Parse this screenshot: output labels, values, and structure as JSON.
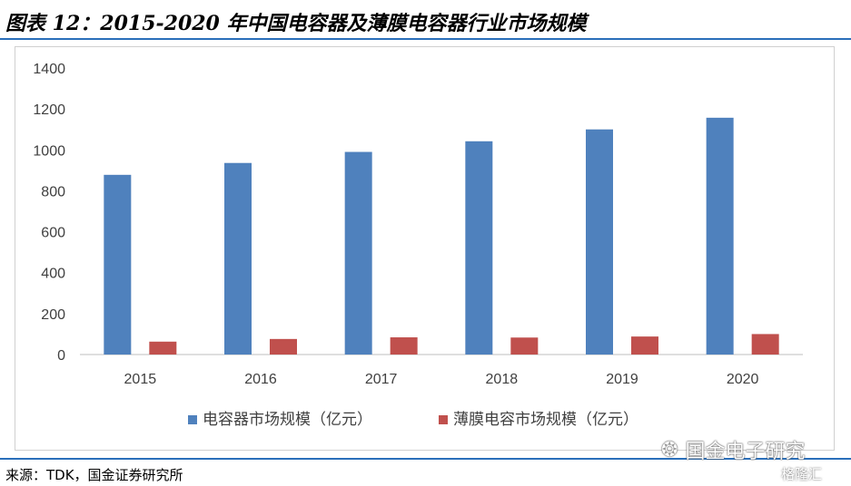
{
  "header": {
    "title": "图表 12：2015-2020 年中国电容器及薄膜电容器行业市场规模"
  },
  "footer": {
    "source": "来源：TDK，国金证券研究所"
  },
  "watermark": {
    "account": "国金电子研究",
    "logo_icon": "wechat-icon",
    "stamp": "格隆汇"
  },
  "chart_data": {
    "type": "bar",
    "categories": [
      "2015",
      "2016",
      "2017",
      "2018",
      "2019",
      "2020"
    ],
    "series": [
      {
        "name": "电容器市场规模（亿元）",
        "color": "#4f81bd",
        "values": [
          878,
          936,
          990,
          1042,
          1100,
          1157
        ]
      },
      {
        "name": "薄膜电容市场规模（亿元）",
        "color": "#c0504d",
        "values": [
          63,
          76,
          84,
          83,
          88,
          100
        ]
      }
    ],
    "ylim": [
      0,
      1400
    ],
    "yticks": [
      0,
      200,
      400,
      600,
      800,
      1000,
      1200,
      1400
    ],
    "grid": false,
    "legend": "bottom"
  }
}
